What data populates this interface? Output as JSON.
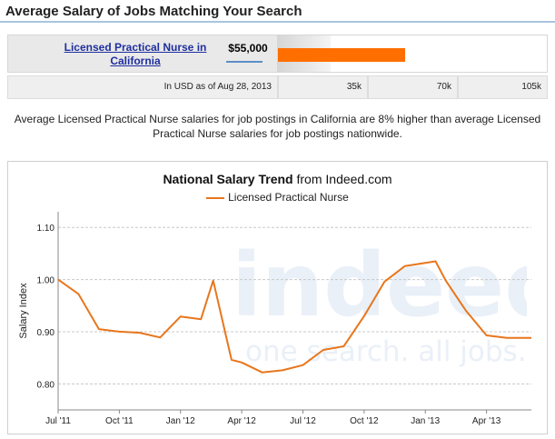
{
  "header": {
    "title": "Average Salary of Jobs Matching Your Search"
  },
  "salary_row": {
    "job_title_line1": "Licensed Practical Nurse in",
    "job_title_line2": "California",
    "salary": "$55,000",
    "salary_value": 55000,
    "bar_color": "#ff6f00",
    "scale_note": "In USD as of Aug 28, 2013",
    "scale_ticks": [
      "35k",
      "70k",
      "105k"
    ]
  },
  "description": "Average Licensed Practical Nurse salaries for job postings in California are 8% higher than average Licensed Practical Nurse salaries for job postings nationwide.",
  "watermark": {
    "brand": "indeed",
    "tagline": "one search. all jobs."
  },
  "chart_data": {
    "type": "line",
    "title_bold": "National Salary Trend",
    "title_rest": " from Indeed.com",
    "ylabel": "Salary Index",
    "xlabel": "",
    "ylim": [
      0.75,
      1.13
    ],
    "yticks": [
      0.8,
      0.9,
      1.0,
      1.1
    ],
    "ytick_labels": [
      "0.80",
      "0.90",
      "1.00",
      "1.10"
    ],
    "xticks": [
      {
        "label": "Jul '11",
        "month": 0
      },
      {
        "label": "Oct '11",
        "month": 3
      },
      {
        "label": "Jan '12",
        "month": 6
      },
      {
        "label": "Apr '12",
        "month": 9
      },
      {
        "label": "Jul '12",
        "month": 12
      },
      {
        "label": "Oct '12",
        "month": 15
      },
      {
        "label": "Jan '13",
        "month": 18
      },
      {
        "label": "Apr '13",
        "month": 21
      }
    ],
    "xlim": [
      0,
      23.2
    ],
    "grid": true,
    "legend_position": "top",
    "series": [
      {
        "name": "Licensed Practical Nurse",
        "color": "#e8761c",
        "month": [
          0,
          1,
          2,
          3,
          4,
          5,
          6,
          7,
          7.6,
          8.5,
          9,
          10,
          11,
          12,
          13,
          14,
          15,
          16,
          17,
          18,
          18.5,
          19,
          20,
          21,
          22,
          23.2
        ],
        "values": [
          1.0,
          0.972,
          0.905,
          0.9,
          0.898,
          0.889,
          0.929,
          0.924,
          0.998,
          0.846,
          0.841,
          0.822,
          0.826,
          0.836,
          0.865,
          0.872,
          0.93,
          0.996,
          1.026,
          1.032,
          1.035,
          0.998,
          0.94,
          0.893,
          0.888,
          0.888
        ]
      }
    ]
  }
}
